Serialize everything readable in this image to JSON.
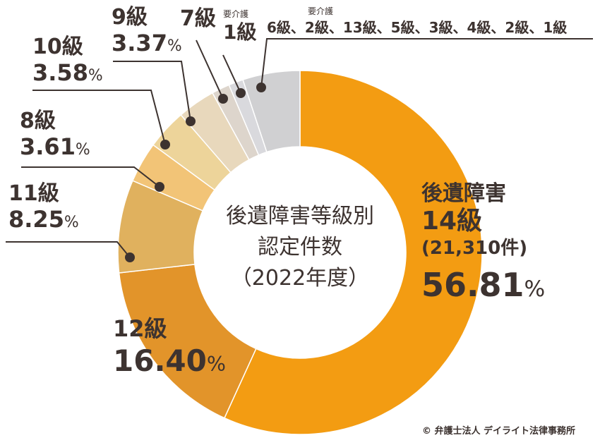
{
  "chart_data": {
    "type": "pie",
    "title": "後遺障害等級別認定件数（2022年度）",
    "center_lines": [
      "後遺障害等級別",
      "認定件数",
      "（2022年度）"
    ],
    "slices": [
      {
        "key": "g14",
        "grade": "14級",
        "prefix": "後遺障害",
        "count": "21,310件",
        "value": 56.81,
        "label": "56.81",
        "color": "#f39c12"
      },
      {
        "key": "g12",
        "grade": "12級",
        "value": 16.4,
        "label": "16.40",
        "color": "#e2942a"
      },
      {
        "key": "g11",
        "grade": "11級",
        "value": 8.25,
        "label": "8.25",
        "color": "#e0b15e"
      },
      {
        "key": "g8",
        "grade": "8級",
        "value": 3.61,
        "label": "3.61",
        "color": "#f2c477"
      },
      {
        "key": "g10",
        "grade": "10級",
        "value": 3.58,
        "label": "3.58",
        "color": "#edd49a"
      },
      {
        "key": "g9",
        "grade": "9級",
        "value": 3.37,
        "label": "3.37",
        "color": "#e8d8bc"
      },
      {
        "key": "g7",
        "grade": "7級",
        "value": 1.6,
        "color": "#ddd5cc"
      },
      {
        "key": "k1",
        "grade": "1級",
        "prefix": "要介護",
        "value": 1.3,
        "color": "#d9d9dd"
      },
      {
        "key": "rest",
        "grade": "6級、2級、13級、5級、3級、4級、2級、1級",
        "prefix": "要介護",
        "value": 5.08,
        "color": "#d0d0d2"
      }
    ],
    "unit": "%"
  },
  "footer": {
    "copyright": "© 弁護士法人 デイライト法律事務所"
  },
  "colors": {
    "line": "#3d3330",
    "text": "#3d3330"
  }
}
